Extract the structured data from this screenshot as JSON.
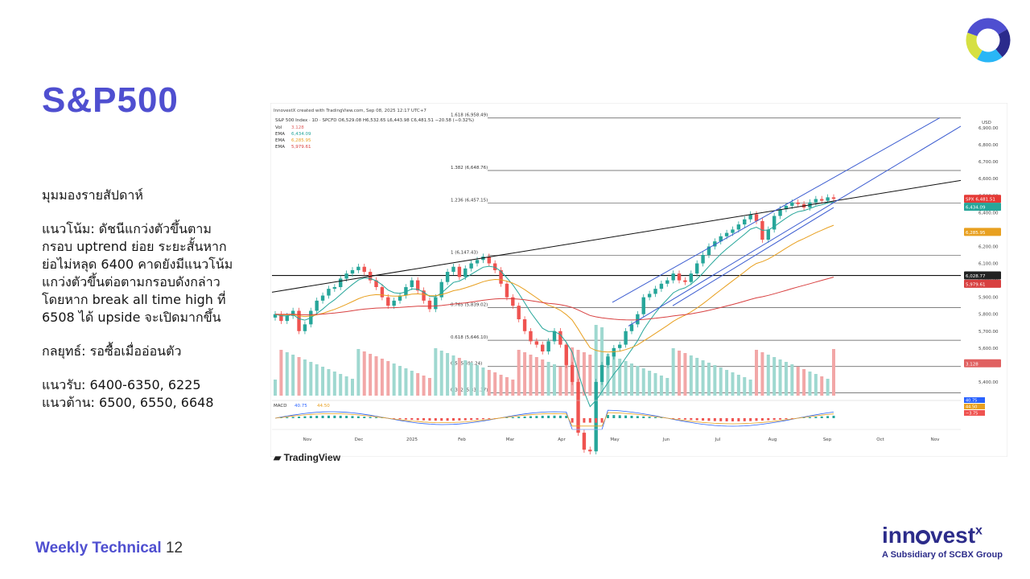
{
  "slide": {
    "title": "S&P500",
    "lines": [
      "มุมมองรายสัปดาห์",
      "",
      "แนวโน้ม: ดัชนีแกว่งตัวขึ้นตาม",
      "กรอบ uptrend ย่อย ระยะสั้นหาก",
      "ย่อไม่หลุด 6400 คาดยังมีแนวโน้ม",
      "แกว่งตัวขึ้นต่อตามกรอบดังกล่าว",
      "โดยหาก break all time high ที่",
      "6508 ได้ upside จะเปิดมากขึ้น",
      "",
      "กลยุทธ์: รอซื้อเมื่ออ่อนตัว",
      "",
      "แนวรับ: 6400-6350, 6225",
      "แนวต้าน: 6500, 6550, 6648"
    ],
    "footer_label": "Weekly Technical",
    "page_number": "12"
  },
  "brand": {
    "name_part1": "inn",
    "name_part2": "vest",
    "name_suffix": "x",
    "subtitle": "A Subsidiary of SCBX Group",
    "ring_colors": [
      "#4f4fd0",
      "#2b2b8c",
      "#29b6f6",
      "#d6e042"
    ]
  },
  "chart_data": {
    "type": "candlestick",
    "attribution": "InnovestX created with TradingView.com, Sep 08, 2025 12:17 UTC+7",
    "header": "S&P 500 Index · 1D · SPCFD",
    "ohlc_text": "O6,529.08 H6,532.65 L6,443.98 C6,481.51 −20.58 (−0.32%)",
    "indicators": [
      {
        "label": "Vol",
        "value": "3.128",
        "color": "#e06060"
      },
      {
        "label": "EMA",
        "value": "6,434.09",
        "color": "#26a69a"
      },
      {
        "label": "EMA",
        "value": "6,285.95",
        "color": "#e8a020"
      },
      {
        "label": "EMA",
        "value": "5,979.61",
        "color": "#d84040"
      }
    ],
    "currency": "USD",
    "x_labels": [
      "Nov",
      "Dec",
      "2025",
      "Feb",
      "Mar",
      "Apr",
      "May",
      "Jun",
      "Jul",
      "Aug",
      "Sep",
      "Oct",
      "Nov"
    ],
    "y_ticks": [
      "6,900.00",
      "6,800.00",
      "6,700.00",
      "6,600.00",
      "6,500.00",
      "6,400.00",
      "6,300.00",
      "6,200.00",
      "6,100.00",
      "6,000.00",
      "5,900.00",
      "5,800.00",
      "5,700.00",
      "5,600.00",
      "5,500.00",
      "5,400.00"
    ],
    "y_range": [
      5300,
      7000
    ],
    "fib_levels": [
      {
        "label": "1.618 (6,958.49)",
        "value": 6958.49
      },
      {
        "label": "1.382 (6,648.76)",
        "value": 6648.76
      },
      {
        "label": "1.236 (6,457.15)",
        "value": 6457.15
      },
      {
        "label": "1 (6,147.43)",
        "value": 6147.43
      },
      {
        "label": "0.765 (5,839.02)",
        "value": 5839.02
      },
      {
        "label": "0.618 (5,646.10)",
        "value": 5646.1
      },
      {
        "label": "0.5 (5,491.24)",
        "value": 5491.24
      },
      {
        "label": "0.382 (5,336.37)",
        "value": 5336.37
      }
    ],
    "price_tags": [
      {
        "label": "SPX",
        "value": "6,481.51",
        "price": 6481.51,
        "color": "#e53935"
      },
      {
        "label": "",
        "value": "6,434.09",
        "price": 6434.09,
        "color": "#26a69a"
      },
      {
        "label": "",
        "value": "6,285.95",
        "price": 6285.95,
        "color": "#e8a020"
      },
      {
        "label": "",
        "value": "6,028.77",
        "price": 6028.77,
        "color": "#222222"
      },
      {
        "label": "",
        "value": "5,979.61",
        "price": 5979.61,
        "color": "#d84040"
      },
      {
        "label": "",
        "value": "3.128",
        "price": 5510,
        "color": "#e06060"
      }
    ],
    "close_series": [
      5800,
      5760,
      5790,
      5820,
      5700,
      5740,
      5820,
      5880,
      5910,
      5950,
      5960,
      6010,
      6040,
      6060,
      6080,
      6050,
      6000,
      5960,
      5900,
      5850,
      5880,
      5910,
      5960,
      6000,
      5940,
      5880,
      5830,
      5900,
      5990,
      6050,
      6080,
      6020,
      6070,
      6100,
      6120,
      6140,
      6100,
      6060,
      5980,
      5900,
      5850,
      5770,
      5700,
      5640,
      5620,
      5580,
      5640,
      5700,
      5620,
      5500,
      5400,
      5100,
      5000,
      4990,
      5400,
      5500,
      5550,
      5600,
      5620,
      5700,
      5740,
      5800,
      5900,
      5920,
      5950,
      5980,
      6000,
      6040,
      6000,
      5990,
      6040,
      6100,
      6150,
      6200,
      6230,
      6260,
      6280,
      6300,
      6330,
      6360,
      6390,
      6350,
      6240,
      6300,
      6380,
      6420,
      6440,
      6460,
      6450,
      6430,
      6460,
      6480,
      6470,
      6490,
      6481
    ],
    "macd": {
      "label": "MACD",
      "values": [
        "40.75",
        "44.50",
        "−3.75"
      ]
    },
    "watermark": "TradingView"
  }
}
